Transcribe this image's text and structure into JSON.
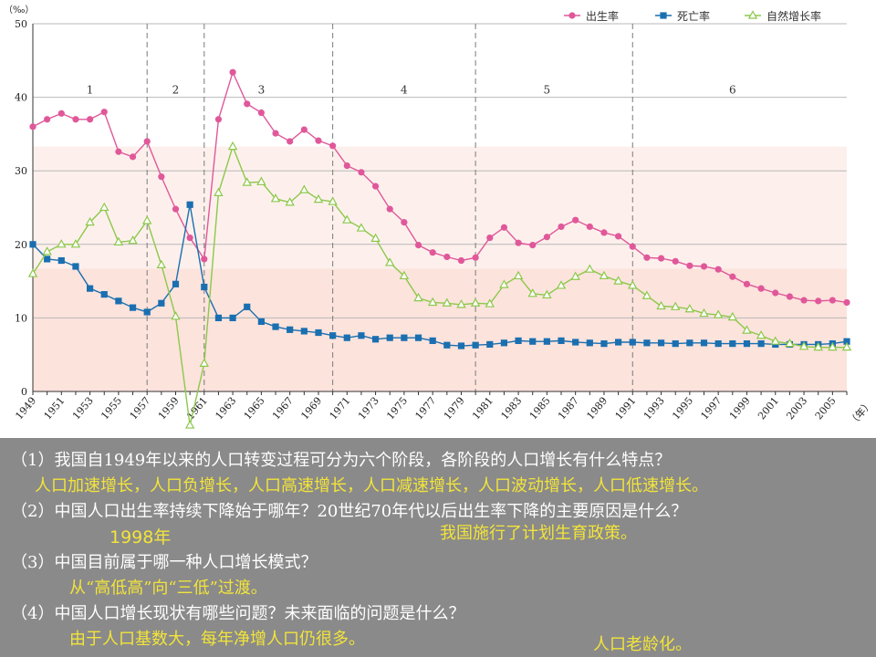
{
  "chart_data": {
    "type": "line",
    "ylabel": "（‰）",
    "xunit": "（年）",
    "ylim": [
      0,
      50
    ],
    "yticks": [
      0,
      10,
      20,
      30,
      40,
      50
    ],
    "x": [
      1949,
      1950,
      1951,
      1952,
      1953,
      1954,
      1955,
      1956,
      1957,
      1958,
      1959,
      1960,
      1961,
      1962,
      1963,
      1964,
      1965,
      1966,
      1967,
      1968,
      1969,
      1970,
      1971,
      1972,
      1973,
      1974,
      1975,
      1976,
      1977,
      1978,
      1979,
      1980,
      1981,
      1982,
      1983,
      1984,
      1985,
      1986,
      1987,
      1988,
      1989,
      1990,
      1991,
      1992,
      1993,
      1994,
      1995,
      1996,
      1997,
      1998,
      1999,
      2000,
      2001,
      2002,
      2003,
      2004,
      2005,
      2006
    ],
    "xtick_labels": [
      "1949",
      "1951",
      "1953",
      "1955",
      "1957",
      "1959",
      "1961",
      "1963",
      "1965",
      "1967",
      "1969",
      "1971",
      "1973",
      "1975",
      "1977",
      "1979",
      "1981",
      "1983",
      "1985",
      "1987",
      "1989",
      "1991",
      "1993",
      "1995",
      "1997",
      "1999",
      "2001",
      "2003",
      "2005"
    ],
    "series": [
      {
        "name": "出生率",
        "color": "#e0589a",
        "marker": "circle",
        "values": [
          36.0,
          37.0,
          37.8,
          37.0,
          37.0,
          38.0,
          32.6,
          31.9,
          34.0,
          29.2,
          24.8,
          20.9,
          18.0,
          37.0,
          43.4,
          39.1,
          37.9,
          35.1,
          34.0,
          35.6,
          34.1,
          33.4,
          30.7,
          29.8,
          27.9,
          24.8,
          23.0,
          19.9,
          18.9,
          18.3,
          17.8,
          18.2,
          20.9,
          22.3,
          20.2,
          19.9,
          21.0,
          22.4,
          23.3,
          22.4,
          21.6,
          21.1,
          19.7,
          18.2,
          18.1,
          17.7,
          17.1,
          17.0,
          16.6,
          15.6,
          14.6,
          14.0,
          13.4,
          12.9,
          12.4,
          12.3,
          12.4,
          12.1
        ]
      },
      {
        "name": "死亡率",
        "color": "#1a6fb0",
        "marker": "square",
        "values": [
          20.0,
          18.0,
          17.8,
          17.0,
          14.0,
          13.2,
          12.3,
          11.4,
          10.8,
          12.0,
          14.6,
          25.4,
          14.2,
          10.0,
          10.0,
          11.5,
          9.5,
          8.8,
          8.4,
          8.2,
          8.0,
          7.6,
          7.3,
          7.6,
          7.1,
          7.3,
          7.3,
          7.3,
          6.9,
          6.3,
          6.2,
          6.3,
          6.4,
          6.6,
          6.9,
          6.8,
          6.8,
          6.9,
          6.7,
          6.6,
          6.5,
          6.7,
          6.7,
          6.6,
          6.6,
          6.5,
          6.6,
          6.6,
          6.5,
          6.5,
          6.5,
          6.5,
          6.4,
          6.4,
          6.4,
          6.4,
          6.5,
          6.8
        ]
      },
      {
        "name": "自然增长率",
        "color": "#8cc84b",
        "marker": "triangle",
        "values": [
          16.0,
          19.0,
          20.0,
          20.0,
          23.0,
          25.0,
          20.3,
          20.5,
          23.2,
          17.2,
          10.2,
          -4.6,
          3.8,
          27.0,
          33.3,
          28.4,
          28.5,
          26.2,
          25.7,
          27.4,
          26.1,
          25.8,
          23.3,
          22.2,
          20.8,
          17.5,
          15.7,
          12.7,
          12.1,
          12.0,
          11.8,
          12.0,
          11.9,
          14.5,
          15.7,
          13.3,
          13.1,
          14.4,
          15.6,
          16.6,
          15.7,
          15.0,
          14.4,
          13.0,
          11.6,
          11.5,
          11.2,
          10.6,
          10.4,
          10.1,
          8.3,
          7.6,
          6.8,
          6.5,
          6.1,
          6.0,
          6.0,
          6.0
        ]
      }
    ],
    "stage_dividers": [
      1957,
      1961,
      1970,
      1980,
      1991
    ],
    "stage_labels": [
      {
        "text": "1",
        "x": 1953
      },
      {
        "text": "2",
        "x": 1959
      },
      {
        "text": "3",
        "x": 1965
      },
      {
        "text": "4",
        "x": 1975
      },
      {
        "text": "5",
        "x": 1985
      },
      {
        "text": "6",
        "x": 1998
      }
    ],
    "bands": [
      {
        "from": 0,
        "to": 16.7,
        "color": "#fce3dc"
      },
      {
        "from": 16.7,
        "to": 33.3,
        "color": "#fdf0ec"
      }
    ],
    "grid": true,
    "legend_position": "top-right"
  },
  "questions": [
    {
      "q": "（1）我国自1949年以来的人口转变过程可分为六个阶段，各阶段的人口增长有什么特点？",
      "a": [
        "人口加速增长，人口负增长，人口高速增长，人口减速增长，人口波动增长，人口低速增长。"
      ]
    },
    {
      "q": "（2）中国人口出生率持续下降始于哪年？20世纪70年代以后出生率下降的主要原因是什么？",
      "a": [
        "1998年",
        "我国施行了计划生育政策。"
      ]
    },
    {
      "q": "（3）中国目前属于哪一种人口增长模式？",
      "a": [
        "从“高低高”向“三低”过渡。"
      ]
    },
    {
      "q": "（4）中国人口增长现状有哪些问题？未来面临的问题是什么？",
      "a": [
        "由于人口基数大，每年净增人口仍很多。",
        "人口老龄化。"
      ]
    }
  ]
}
